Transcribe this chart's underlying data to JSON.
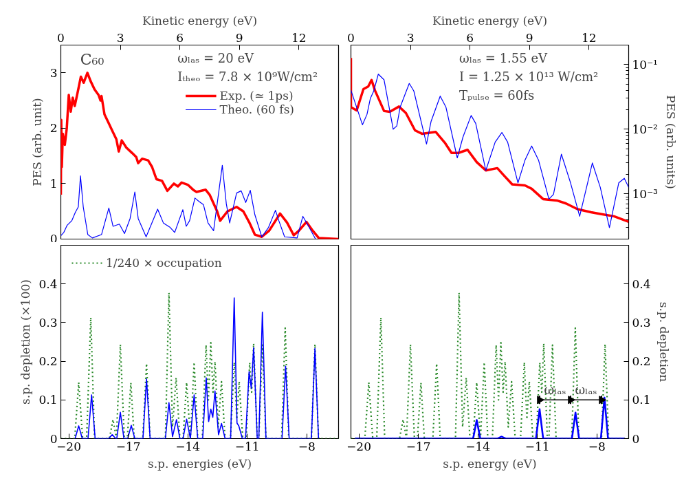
{
  "chart_data": [
    {
      "type": "line",
      "xlabel": "Kinetic energy (eV)",
      "ylabel": "PES (arb. unit)",
      "xlim": [
        0,
        14
      ],
      "ylim": [
        0,
        3.5
      ],
      "xticks": [
        0,
        3,
        6,
        9,
        12
      ],
      "yticks": [
        0,
        1,
        2,
        3
      ],
      "grid": false,
      "legend": "top right",
      "annotations": [
        "C₆₀",
        "ωₗₐₛ = 20 eV",
        "Iₜₕₑₒ = 7.8 × 10⁹W/cm²"
      ],
      "series": [
        {
          "name": "Exp. (≃ 1ps)",
          "color": "#ff0000",
          "x": [
            0,
            0.02,
            0.05,
            0.1,
            0.2,
            0.3,
            0.4,
            0.5,
            0.6,
            0.7,
            0.85,
            1.01,
            1.15,
            1.34,
            1.5,
            1.7,
            1.9,
            2.0,
            2.05,
            2.2,
            2.4,
            2.6,
            2.8,
            2.92,
            3.07,
            3.3,
            3.6,
            3.8,
            3.9,
            4.1,
            4.4,
            4.6,
            4.82,
            5.1,
            5.37,
            5.7,
            5.9,
            6.09,
            6.4,
            6.7,
            6.84,
            7.3,
            7.5,
            7.88,
            8.03,
            8.4,
            8.86,
            9.2,
            9.5,
            9.78,
            10.13,
            10.5,
            11.05,
            11.4,
            11.74,
            12.0,
            12.38,
            12.7,
            13.0,
            13.5,
            14
          ],
          "values": [
            0.8,
            2.15,
            1.3,
            1.9,
            1.7,
            2.0,
            2.6,
            2.3,
            2.55,
            2.4,
            2.65,
            2.93,
            2.82,
            3.0,
            2.85,
            2.7,
            2.6,
            2.5,
            2.58,
            2.25,
            2.1,
            1.95,
            1.8,
            1.58,
            1.78,
            1.65,
            1.55,
            1.48,
            1.37,
            1.45,
            1.42,
            1.3,
            1.08,
            1.05,
            0.87,
            1.0,
            0.95,
            1.02,
            0.98,
            0.88,
            0.85,
            0.89,
            0.8,
            0.5,
            0.33,
            0.5,
            0.58,
            0.5,
            0.3,
            0.08,
            0.04,
            0.15,
            0.46,
            0.3,
            0.07,
            0.15,
            0.31,
            0.15,
            0.02,
            0.01,
            0.0
          ]
        },
        {
          "name": "Theo. (60 fs)",
          "color": "#0000ff",
          "x": [
            0,
            0.15,
            0.32,
            0.55,
            0.73,
            0.88,
            0.99,
            1.13,
            1.36,
            1.59,
            2.05,
            2.42,
            2.63,
            2.95,
            3.21,
            3.49,
            3.73,
            3.9,
            4.3,
            4.88,
            5.17,
            5.51,
            5.74,
            6.15,
            6.32,
            6.49,
            6.76,
            6.96,
            7.19,
            7.42,
            7.7,
            8.14,
            8.34,
            8.51,
            8.86,
            9.09,
            9.32,
            9.55,
            9.78,
            10.13,
            10.47,
            10.82,
            10.99,
            11.28,
            11.91,
            12.2,
            12.49,
            12.84
          ],
          "values": [
            0.06,
            0.12,
            0.25,
            0.33,
            0.48,
            0.58,
            1.14,
            0.58,
            0.08,
            0.02,
            0.08,
            0.56,
            0.23,
            0.27,
            0.1,
            0.37,
            0.85,
            0.37,
            0.04,
            0.54,
            0.29,
            0.21,
            0.12,
            0.53,
            0.23,
            0.33,
            0.74,
            0.68,
            0.62,
            0.29,
            0.15,
            1.33,
            0.64,
            0.29,
            0.83,
            0.87,
            0.66,
            0.88,
            0.44,
            0.04,
            0.21,
            0.52,
            0.33,
            0.04,
            0.02,
            0.41,
            0.23,
            0.0
          ]
        }
      ]
    },
    {
      "type": "line",
      "xlabel": "Kinetic energy (eV)",
      "ylabel": "PES (arb. units)",
      "log": "y",
      "xlim": [
        0,
        14
      ],
      "ylim": [
        0.0002,
        0.2
      ],
      "xticks": [
        0,
        3,
        6,
        9,
        12
      ],
      "yticks": [
        {
          "value": 0.001,
          "label": "10⁻³"
        },
        {
          "value": 0.01,
          "label": "10⁻²"
        },
        {
          "value": 0.1,
          "label": "10⁻¹"
        }
      ],
      "grid": false,
      "annotations": [
        "ωₗₐₛ = 1.55 eV",
        "I = 1.25 × 10¹³ W/cm²",
        "Tₚᵤₗₛₑ = 60fs"
      ],
      "series": [
        {
          "color": "#ff0000",
          "x": [
            0,
            0,
            0.29,
            0.63,
            0.87,
            1.04,
            1.21,
            1.67,
            1.96,
            2.42,
            2.77,
            3.23,
            3.58,
            4.27,
            4.73,
            5.07,
            5.42,
            5.88,
            6.34,
            6.8,
            7.38,
            7.73,
            8.13,
            8.77,
            9.11,
            9.69,
            10.38,
            10.84,
            11.42,
            12.1,
            12.57,
            13.26,
            14
          ],
          "values": [
            0.126,
            0.0219,
            0.0195,
            0.0417,
            0.0457,
            0.0575,
            0.0398,
            0.0191,
            0.0186,
            0.0224,
            0.0178,
            0.0096,
            0.0085,
            0.0091,
            0.0062,
            0.0043,
            0.0043,
            0.0048,
            0.0031,
            0.0023,
            0.0025,
            0.0019,
            0.0014,
            0.00135,
            0.0012,
            0.00083,
            0.00079,
            0.00071,
            0.00058,
            0.00052,
            0.00049,
            0.00045,
            0.00037
          ]
        },
        {
          "color": "#0000ff",
          "x": [
            0,
            0.58,
            0.81,
            0.98,
            1.15,
            1.38,
            1.67,
            2.13,
            2.31,
            2.48,
            2.94,
            3.17,
            3.81,
            4.04,
            4.5,
            4.79,
            5.36,
            5.65,
            6.06,
            6.29,
            6.8,
            7.27,
            7.61,
            7.9,
            8.42,
            8.77,
            9.11,
            9.46,
            9.98,
            10.21,
            10.61,
            11.07,
            11.53,
            12.17,
            12.57,
            13.03,
            13.5,
            13.78,
            14
          ],
          "values": [
            0.04,
            0.0117,
            0.017,
            0.03,
            0.039,
            0.071,
            0.058,
            0.01,
            0.0112,
            0.0219,
            0.051,
            0.039,
            0.0059,
            0.0132,
            0.0325,
            0.0219,
            0.0036,
            0.0076,
            0.0163,
            0.0123,
            0.0023,
            0.0063,
            0.0089,
            0.0063,
            0.00148,
            0.0033,
            0.0055,
            0.0033,
            0.00083,
            0.00098,
            0.0041,
            0.00148,
            0.00045,
            0.003,
            0.00126,
            0.0003,
            0.00148,
            0.00174,
            0.00126
          ]
        }
      ]
    },
    {
      "type": "line",
      "xlabel": "s.p. energies (eV)",
      "ylabel": "s.p. depletion (×100)",
      "xlim": [
        -20.4,
        -6.4
      ],
      "ylim": [
        0,
        0.5
      ],
      "xticks": [
        -20,
        -17,
        -14,
        -11,
        -8
      ],
      "yticks": [
        0,
        0.1,
        0.2,
        0.3,
        0.4
      ],
      "grid": false,
      "legend": "top left",
      "series": [
        {
          "name": "1/240 × occupation",
          "color": "#2a8a2a",
          "line_style": "dotted",
          "x": [
            -20.4,
            -19.7,
            -19.5,
            -19.3,
            -19.1,
            -18.89,
            -18.7,
            -17.95,
            -17.77,
            -17.6,
            -17.4,
            -17.2,
            -17.05,
            -16.87,
            -16.7,
            -16.27,
            -16.08,
            -15.9,
            -15.13,
            -14.95,
            -14.77,
            -14.59,
            -14.4,
            -14.24,
            -14.06,
            -13.87,
            -13.68,
            -13.5,
            -13.27,
            -13.08,
            -12.96,
            -12.84,
            -12.73,
            -12.63,
            -12.47,
            -12.3,
            -12.12,
            -11.85,
            -11.66,
            -11.53,
            -11.41,
            -11.23,
            -11.06,
            -10.88,
            -10.78,
            -10.68,
            -10.5,
            -10.42,
            -10.24,
            -10.06,
            -9.27,
            -9.09,
            -8.91,
            -7.77,
            -7.59,
            -7.41,
            -6.4
          ],
          "values": [
            0,
            0,
            0.145,
            0,
            0,
            0.313,
            0,
            0,
            0.049,
            0,
            0.243,
            0,
            0,
            0.144,
            0,
            0,
            0.194,
            0,
            0,
            0.377,
            0.03,
            0.157,
            0,
            0,
            0.145,
            0,
            0.197,
            0,
            0,
            0.242,
            0.1,
            0.248,
            0.12,
            0.199,
            0.03,
            0.147,
            0,
            0,
            0.197,
            0.05,
            0.148,
            0,
            0,
            0.196,
            0.12,
            0.246,
            0,
            0,
            0.242,
            0,
            0,
            0.286,
            0,
            0,
            0.244,
            0,
            0
          ]
        },
        {
          "color": "#0000ff",
          "x": [
            -19.68,
            -19.5,
            -19.32,
            -19.03,
            -18.85,
            -18.67,
            -17.99,
            -17.81,
            -17.63,
            -17.58,
            -17.4,
            -17.22,
            -17.03,
            -16.85,
            -16.67,
            -16.26,
            -16.08,
            -15.9,
            -15.13,
            -14.95,
            -14.77,
            -14.57,
            -14.4,
            -14.24,
            -14.06,
            -13.87,
            -13.68,
            -13.5,
            -13.25,
            -13.07,
            -12.95,
            -12.84,
            -12.74,
            -12.63,
            -12.45,
            -12.3,
            -12.12,
            -11.84,
            -11.66,
            -11.52,
            -11.43,
            -11.25,
            -11.09,
            -10.91,
            -10.8,
            -10.68,
            -10.5,
            -10.42,
            -10.24,
            -10.06,
            -9.25,
            -9.07,
            -8.89,
            -7.77,
            -7.59,
            -7.41
          ],
          "values": [
            0,
            0.033,
            0,
            0,
            0.113,
            0,
            0,
            0.01,
            0,
            0,
            0.068,
            0,
            0,
            0.034,
            0,
            0,
            0.154,
            0,
            0,
            0.093,
            0.005,
            0.049,
            0,
            0,
            0.05,
            0,
            0.113,
            0,
            0,
            0.157,
            0.044,
            0.076,
            0.055,
            0.123,
            0.01,
            0.039,
            0,
            0,
            0.364,
            0.04,
            0.033,
            0,
            0,
            0.173,
            0.13,
            0.235,
            0,
            0,
            0.327,
            0,
            0,
            0.187,
            0,
            0,
            0.233,
            0
          ]
        }
      ]
    },
    {
      "type": "line",
      "xlabel": "s.p. energy (eV)",
      "ylabel": "s.p. depletion",
      "xlim": [
        -20.4,
        -6.4
      ],
      "ylim": [
        0,
        0.5
      ],
      "xticks": [
        -20,
        -17,
        -14,
        -11,
        -8
      ],
      "yticks": [
        0,
        0.1,
        0.2,
        0.3,
        0.4
      ],
      "grid": false,
      "annotations": [
        {
          "text": "ωₗₐₛ",
          "x": -10.11,
          "y": 0.1
        },
        {
          "text": "ωₗₐₛ",
          "x": -8.55,
          "y": 0.1
        }
      ],
      "series": [
        {
          "color": "#2a8a2a",
          "line_style": "dotted",
          "x": [
            -20.4,
            -19.7,
            -19.5,
            -19.3,
            -19.1,
            -18.89,
            -18.7,
            -17.95,
            -17.77,
            -17.6,
            -17.4,
            -17.2,
            -17.05,
            -16.87,
            -16.7,
            -16.27,
            -16.08,
            -15.9,
            -15.13,
            -14.95,
            -14.77,
            -14.59,
            -14.4,
            -14.24,
            -14.06,
            -13.87,
            -13.68,
            -13.5,
            -13.27,
            -13.08,
            -12.96,
            -12.84,
            -12.73,
            -12.63,
            -12.47,
            -12.3,
            -12.12,
            -11.85,
            -11.66,
            -11.53,
            -11.41,
            -11.23,
            -11.06,
            -10.88,
            -10.78,
            -10.68,
            -10.5,
            -10.42,
            -10.24,
            -10.06,
            -9.27,
            -9.09,
            -8.91,
            -7.77,
            -7.59,
            -7.41,
            -6.4
          ],
          "values": [
            0,
            0,
            0.145,
            0,
            0,
            0.313,
            0,
            0,
            0.049,
            0,
            0.243,
            0,
            0,
            0.144,
            0,
            0,
            0.194,
            0,
            0,
            0.377,
            0.03,
            0.157,
            0,
            0,
            0.145,
            0,
            0.197,
            0,
            0,
            0.242,
            0.1,
            0.248,
            0.12,
            0.199,
            0.03,
            0.147,
            0,
            0,
            0.197,
            0.05,
            0.148,
            0,
            0,
            0.196,
            0.12,
            0.246,
            0,
            0,
            0.242,
            0,
            0,
            0.286,
            0,
            0,
            0.244,
            0,
            0
          ]
        },
        {
          "color": "#0000ff",
          "x": [
            -20.2,
            -14.24,
            -14.06,
            -13.88,
            -13.0,
            -12.81,
            -12.6,
            -11.07,
            -10.89,
            -10.71,
            -9.26,
            -9.08,
            -8.9,
            -7.8,
            -7.62,
            -7.44,
            -6.6
          ],
          "values": [
            0,
            0,
            0.048,
            0,
            0,
            0.005,
            0,
            0,
            0.076,
            0,
            0,
            0.067,
            0,
            0,
            0.106,
            0,
            0
          ]
        },
        {
          "color": "#000000",
          "marker": "triangle",
          "x": [
            -10.89,
            -9.33,
            -7.77
          ],
          "values": [
            0.1,
            0.1,
            0.1
          ]
        }
      ]
    }
  ]
}
